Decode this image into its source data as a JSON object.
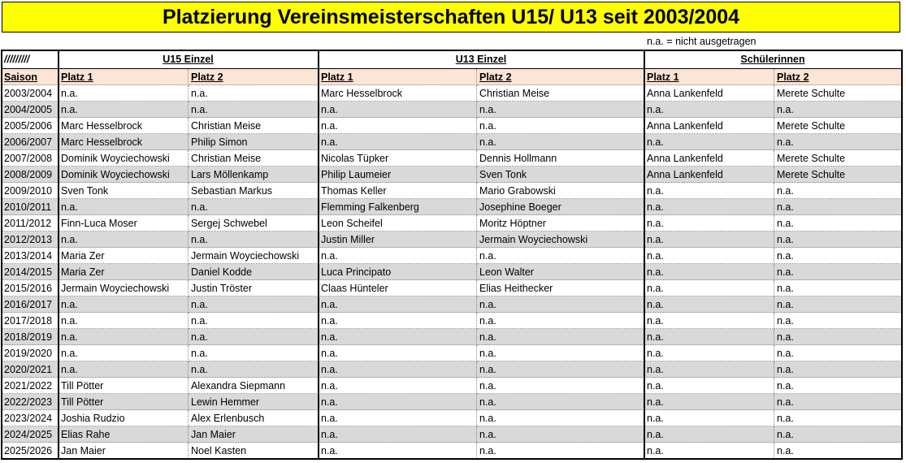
{
  "title": "Platzierung Vereinsmeisterschaften U15/ U13 seit 2003/2004",
  "note": "n.a. = nicht ausgetragen",
  "table": {
    "corner": "/////////",
    "groups": [
      "U15 Einzel",
      "U13 Einzel",
      "Schülerinnen"
    ],
    "columns": [
      "Saison",
      "Platz 1",
      "Platz 2",
      "Platz 1",
      "Platz 2",
      "Platz 1",
      "Platz 2"
    ],
    "rows": [
      [
        "2003/2004",
        "n.a.",
        "n.a.",
        "Marc Hesselbrock",
        "Christian Meise",
        "Anna Lankenfeld",
        "Merete Schulte"
      ],
      [
        "2004/2005",
        "n.a.",
        "n.a.",
        "n.a.",
        "n.a.",
        "n.a.",
        "n.a."
      ],
      [
        "2005/2006",
        "Marc Hesselbrock",
        "Christian Meise",
        "n.a.",
        "n.a.",
        "Anna Lankenfeld",
        "Merete Schulte"
      ],
      [
        "2006/2007",
        "Marc Hesselbrock",
        "Philip Simon",
        "n.a.",
        "n.a.",
        "n.a.",
        "n.a."
      ],
      [
        "2007/2008",
        "Dominik Woyciechowski",
        "Christian Meise",
        "Nicolas Tüpker",
        "Dennis Hollmann",
        "Anna Lankenfeld",
        "Merete Schulte"
      ],
      [
        "2008/2009",
        "Dominik Woyciechowski",
        "Lars Möllenkamp",
        "Philip Laumeier",
        "Sven Tonk",
        "Anna Lankenfeld",
        "Merete Schulte"
      ],
      [
        "2009/2010",
        "Sven Tonk",
        "Sebastian Markus",
        "Thomas Keller",
        "Mario Grabowski",
        "n.a.",
        "n.a."
      ],
      [
        "2010/2011",
        "n.a.",
        "n.a.",
        "Flemming Falkenberg",
        "Josephine Boeger",
        "n.a.",
        "n.a."
      ],
      [
        "2011/2012",
        "Finn-Luca Moser",
        "Sergej Schwebel",
        "Leon Scheifel",
        "Moritz Höptner",
        "n.a.",
        "n.a."
      ],
      [
        "2012/2013",
        "n.a.",
        "n.a.",
        "Justin Miller",
        "Jermain Woyciechowski",
        "n.a.",
        "n.a."
      ],
      [
        "2013/2014",
        "Maria Zer",
        "Jermain Woyciechowski",
        "n.a.",
        "n.a.",
        "n.a.",
        "n.a."
      ],
      [
        "2014/2015",
        "Maria Zer",
        "Daniel Kodde",
        "Luca Principato",
        "Leon Walter",
        "n.a.",
        "n.a."
      ],
      [
        "2015/2016",
        "Jermain Woyciechowski",
        "Justin Tröster",
        "Claas Hünteler",
        "Elias Heithecker",
        "n.a.",
        "n.a."
      ],
      [
        "2016/2017",
        "n.a.",
        "n.a.",
        "n.a.",
        "n.a.",
        "n.a.",
        "n.a."
      ],
      [
        "2017/2018",
        "n.a.",
        "n.a.",
        "n.a.",
        "n.a.",
        "n.a.",
        "n.a."
      ],
      [
        "2018/2019",
        "n.a.",
        "n.a.",
        "n.a.",
        "n.a.",
        "n.a.",
        "n.a."
      ],
      [
        "2019/2020",
        "n.a.",
        "n.a.",
        "n.a.",
        "n.a.",
        "n.a.",
        "n.a."
      ],
      [
        "2020/2021",
        "n.a.",
        "n.a.",
        "n.a.",
        "n.a.",
        "n.a.",
        "n.a."
      ],
      [
        "2021/2022",
        "Till Pötter",
        "Alexandra Siepmann",
        "n.a.",
        "n.a.",
        "n.a.",
        "n.a."
      ],
      [
        "2022/2023",
        "Till Pötter",
        "Lewin Hemmer",
        "n.a.",
        "n.a.",
        "n.a.",
        "n.a."
      ],
      [
        "2023/2024",
        "Joshia Rudzio",
        "Alex Erlenbusch",
        "n.a.",
        "n.a.",
        "n.a.",
        "n.a."
      ],
      [
        "2024/2025",
        "Elias Rahe",
        "Jan Maier",
        "n.a.",
        "n.a.",
        "n.a.",
        "n.a."
      ],
      [
        "2025/2026",
        "Jan Maier",
        "Noel Kasten",
        "n.a.",
        "n.a.",
        "n.a.",
        "n.a."
      ]
    ]
  }
}
